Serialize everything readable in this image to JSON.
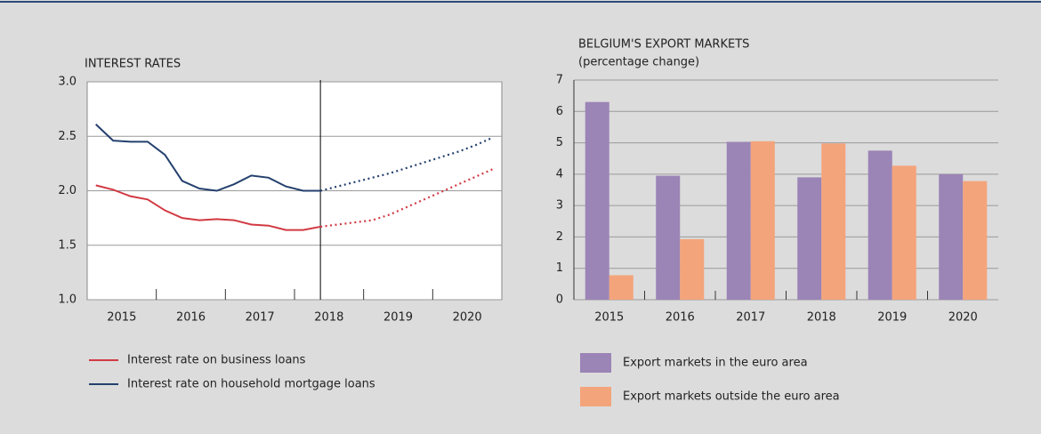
{
  "chart_data": [
    {
      "type": "line",
      "title": "INTEREST RATES",
      "x": [
        2015.125,
        2015.375,
        2015.625,
        2015.875,
        2016.125,
        2016.375,
        2016.625,
        2016.875,
        2017.125,
        2017.375,
        2017.625,
        2017.875,
        2018.125,
        2018.375,
        2018.625,
        2018.875,
        2019.125,
        2019.375,
        2019.625,
        2019.875,
        2020.125,
        2020.375,
        2020.625,
        2020.875
      ],
      "forecast_start": 2018.375,
      "series": [
        {
          "name": "Interest rate on business loans",
          "color": "#d23a43",
          "values": [
            2.05,
            2.01,
            1.95,
            1.92,
            1.82,
            1.75,
            1.73,
            1.74,
            1.73,
            1.69,
            1.68,
            1.64,
            1.64,
            1.67,
            1.69,
            1.71,
            1.73,
            1.78,
            1.85,
            1.92,
            1.99,
            2.06,
            2.13,
            2.2
          ]
        },
        {
          "name": "Interest rate on household mortgage loans",
          "color": "#24406e",
          "values": [
            2.61,
            2.46,
            2.45,
            2.45,
            2.33,
            2.09,
            2.02,
            2.0,
            2.06,
            2.14,
            2.12,
            2.04,
            2.0,
            2.0,
            2.04,
            2.08,
            2.12,
            2.16,
            2.21,
            2.26,
            2.31,
            2.36,
            2.42,
            2.49
          ]
        }
      ],
      "xlim": [
        2015,
        2021
      ],
      "xticks": [
        {
          "value": 2015.5,
          "label": "2015"
        },
        {
          "value": 2016.5,
          "label": "2016"
        },
        {
          "value": 2017.5,
          "label": "2017"
        },
        {
          "value": 2018.5,
          "label": "2018"
        },
        {
          "value": 2019.5,
          "label": "2019"
        },
        {
          "value": 2020.5,
          "label": "2020"
        }
      ],
      "ylim": [
        1,
        3
      ],
      "yticks": [
        {
          "value": 1,
          "label": "1.0"
        },
        1.5,
        {
          "value": 2,
          "label": "2.0"
        },
        2.5,
        {
          "value": 3,
          "label": "3.0"
        }
      ],
      "grid": true
    },
    {
      "type": "bar",
      "title": "BELGIUM'S EXPORT MARKETS",
      "subtitle": "(percentage change)",
      "categories": [
        "2015",
        "2016",
        "2017",
        "2018",
        "2019",
        "2020"
      ],
      "series": [
        {
          "name": "Export markets in the euro area",
          "color": "#9b84b6",
          "values": [
            6.3,
            3.95,
            5.03,
            3.9,
            4.75,
            4.0
          ]
        },
        {
          "name": "Export markets outside the euro area",
          "color": "#f4a47b",
          "values": [
            0.78,
            1.93,
            5.05,
            4.98,
            4.27,
            3.78
          ]
        }
      ],
      "ylim": [
        0,
        7
      ],
      "yticks": [
        0,
        1,
        2,
        3,
        4,
        5,
        6,
        7
      ],
      "grid": true
    }
  ]
}
